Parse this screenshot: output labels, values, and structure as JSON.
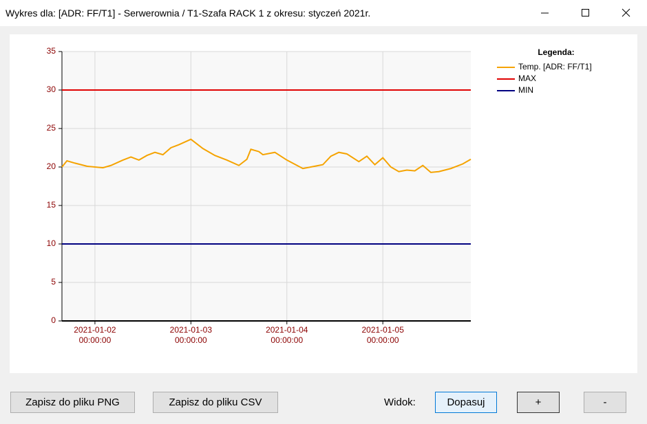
{
  "window": {
    "title": "Wykres dla: [ADR: FF/T1] - Serwerownia / T1-Szafa RACK 1 z okresu: styczeń 2021r."
  },
  "chart_data": {
    "type": "line",
    "legend_title": "Legenda:",
    "legend": "right",
    "grid": true,
    "xlim": [
      "2021-01-01 15:45:00",
      "2021-01-05 22:00:00"
    ],
    "xticks": [
      "2021-01-02 00:00:00",
      "2021-01-03 00:00:00",
      "2021-01-04 00:00:00",
      "2021-01-05 00:00:00"
    ],
    "ylim": [
      0,
      35
    ],
    "yticks": [
      0,
      5,
      10,
      15,
      20,
      25,
      30,
      35
    ],
    "series": [
      {
        "name": "Temp. [ADR: FF/T1]",
        "color": "#f5a300",
        "x": [
          "2021-01-01 15:45:00",
          "2021-01-01 17:00:00",
          "2021-01-01 19:00:00",
          "2021-01-01 22:00:00",
          "2021-01-02 02:00:00",
          "2021-01-02 04:00:00",
          "2021-01-02 07:00:00",
          "2021-01-02 09:00:00",
          "2021-01-02 11:00:00",
          "2021-01-02 13:00:00",
          "2021-01-02 15:00:00",
          "2021-01-02 17:00:00",
          "2021-01-02 19:00:00",
          "2021-01-02 21:00:00",
          "2021-01-03 00:00:00",
          "2021-01-03 03:00:00",
          "2021-01-03 06:00:00",
          "2021-01-03 09:00:00",
          "2021-01-03 12:00:00",
          "2021-01-03 14:00:00",
          "2021-01-03 15:00:00",
          "2021-01-03 17:00:00",
          "2021-01-03 18:00:00",
          "2021-01-03 21:00:00",
          "2021-01-04 00:00:00",
          "2021-01-04 04:00:00",
          "2021-01-04 07:00:00",
          "2021-01-04 09:00:00",
          "2021-01-04 11:00:00",
          "2021-01-04 13:00:00",
          "2021-01-04 15:00:00",
          "2021-01-04 18:00:00",
          "2021-01-04 20:00:00",
          "2021-01-04 22:00:00",
          "2021-01-05 00:00:00",
          "2021-01-05 02:00:00",
          "2021-01-05 04:00:00",
          "2021-01-05 06:00:00",
          "2021-01-05 08:00:00",
          "2021-01-05 10:00:00",
          "2021-01-05 12:00:00",
          "2021-01-05 14:00:00",
          "2021-01-05 17:00:00",
          "2021-01-05 20:00:00",
          "2021-01-05 22:00:00"
        ],
        "values": [
          20.0,
          20.8,
          20.5,
          20.1,
          19.9,
          20.2,
          20.9,
          21.3,
          20.9,
          21.5,
          21.9,
          21.6,
          22.5,
          22.9,
          23.6,
          22.4,
          21.5,
          20.9,
          20.2,
          21.0,
          22.3,
          22.0,
          21.6,
          21.9,
          20.9,
          19.8,
          20.1,
          20.3,
          21.4,
          21.9,
          21.7,
          20.7,
          21.4,
          20.3,
          21.2,
          20.0,
          19.4,
          19.6,
          19.5,
          20.2,
          19.3,
          19.4,
          19.8,
          20.4,
          21.0
        ]
      },
      {
        "name": "MAX",
        "color": "#e00000",
        "x": [
          "2021-01-01 15:45:00",
          "2021-01-05 22:00:00"
        ],
        "values": [
          30,
          30
        ]
      },
      {
        "name": "MIN",
        "color": "#000080",
        "x": [
          "2021-01-01 15:45:00",
          "2021-01-05 22:00:00"
        ],
        "values": [
          10,
          10
        ]
      }
    ]
  },
  "buttons": {
    "png": "Zapisz do pliku PNG",
    "csv": "Zapisz do pliku CSV",
    "view_label": "Widok:",
    "fit": "Dopasuj",
    "zoom_in": "+",
    "zoom_out": "-"
  }
}
